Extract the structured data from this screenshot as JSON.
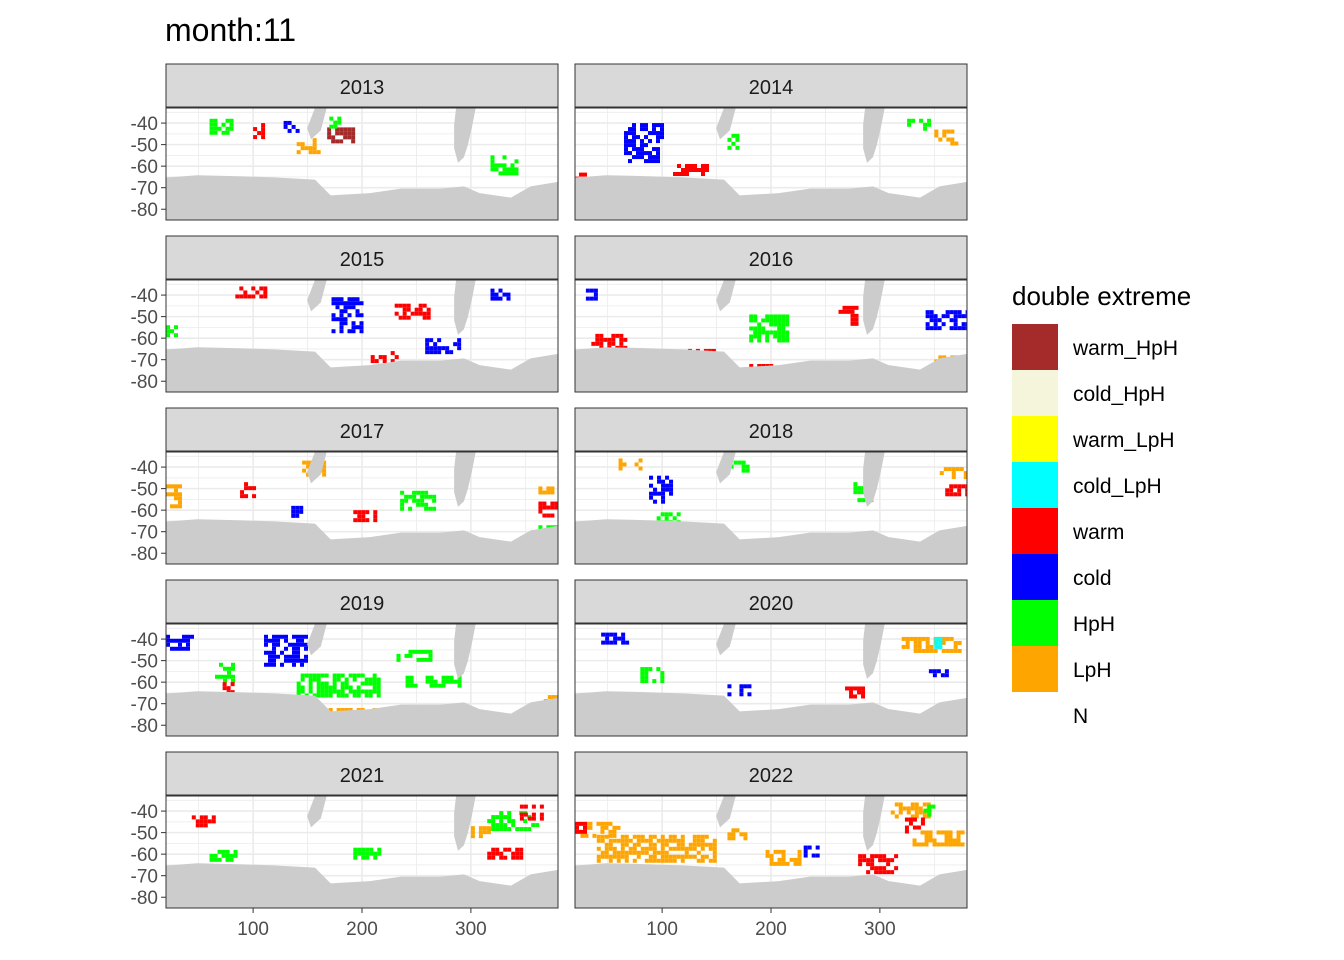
{
  "title": "month:11",
  "x_ticks": [
    "100",
    "200",
    "300"
  ],
  "y_ticks": [
    "-40",
    "-50",
    "-60",
    "-70",
    "-80"
  ],
  "legend": {
    "title": "double extreme",
    "items": [
      {
        "label": "warm_HpH",
        "color": "#a52a2a"
      },
      {
        "label": "cold_HpH",
        "color": "#f5f5dc"
      },
      {
        "label": "warm_LpH",
        "color": "#ffff00"
      },
      {
        "label": "cold_LpH",
        "color": "#00ffff"
      },
      {
        "label": "warm",
        "color": "#ff0000"
      },
      {
        "label": "cold",
        "color": "#0000ff"
      },
      {
        "label": "HpH",
        "color": "#00ff00"
      },
      {
        "label": "LpH",
        "color": "#ffa500"
      },
      {
        "label": "N",
        "color": null
      }
    ]
  },
  "chart_data": {
    "type": "heatmap",
    "facet_by": "year",
    "x_range": [
      20,
      380
    ],
    "y_range": [
      -85,
      -33
    ],
    "x_tick_values": [
      100,
      200,
      300
    ],
    "y_tick_values": [
      -40,
      -50,
      -60,
      -70,
      -80
    ],
    "land_color": "#cccccc",
    "grid": true,
    "legend_position": "right",
    "panels": [
      {
        "year": "2013",
        "regions": [
          {
            "c": "warm_HpH",
            "x": [
              168,
              192
            ],
            "y": [
              -49,
              -42
            ]
          },
          {
            "c": "HpH",
            "x": [
              318,
              342
            ],
            "y": [
              -64,
              -55
            ]
          },
          {
            "c": "HpH",
            "x": [
              60,
              80
            ],
            "y": [
              -44,
              -38
            ]
          },
          {
            "c": "LpH",
            "x": [
              140,
              160
            ],
            "y": [
              -54,
              -47
            ]
          },
          {
            "c": "warm",
            "x": [
              100,
              110
            ],
            "y": [
              -46,
              -40
            ]
          },
          {
            "c": "cold",
            "x": [
              128,
              142
            ],
            "y": [
              -44,
              -39
            ]
          },
          {
            "c": "HpH",
            "x": [
              170,
              180
            ],
            "y": [
              -41,
              -37
            ]
          }
        ]
      },
      {
        "year": "2014",
        "regions": [
          {
            "c": "cold",
            "x": [
              65,
              100
            ],
            "y": [
              -58,
              -40
            ]
          },
          {
            "c": "HpH",
            "x": [
              160,
              170
            ],
            "y": [
              -52,
              -45
            ]
          },
          {
            "c": "LpH",
            "x": [
              350,
              370
            ],
            "y": [
              -49,
              -43
            ]
          },
          {
            "c": "warm",
            "x": [
              110,
              140
            ],
            "y": [
              -64,
              -59
            ]
          },
          {
            "c": "warm",
            "x": [
              20,
              30
            ],
            "y": [
              -67,
              -63
            ]
          },
          {
            "c": "warm",
            "x": [
              218,
              238
            ],
            "y": [
              -75,
              -72
            ]
          },
          {
            "c": "HpH",
            "x": [
              325,
              345
            ],
            "y": [
              -42,
              -38
            ]
          }
        ]
      },
      {
        "year": "2015",
        "regions": [
          {
            "c": "warm",
            "x": [
              80,
              110
            ],
            "y": [
              -41,
              -36
            ]
          },
          {
            "c": "cold",
            "x": [
              172,
              200
            ],
            "y": [
              -56,
              -41
            ]
          },
          {
            "c": "warm",
            "x": [
              230,
              260
            ],
            "y": [
              -50,
              -44
            ]
          },
          {
            "c": "cold",
            "x": [
              258,
              290
            ],
            "y": [
              -67,
              -60
            ]
          },
          {
            "c": "warm",
            "x": [
              30,
              55
            ],
            "y": [
              -70,
              -66
            ]
          },
          {
            "c": "HpH",
            "x": [
              20,
              28
            ],
            "y": [
              -61,
              -54
            ]
          },
          {
            "c": "warm",
            "x": [
              208,
              232
            ],
            "y": [
              -70,
              -66
            ]
          },
          {
            "c": "cold",
            "x": [
              318,
              335
            ],
            "y": [
              -42,
              -37
            ]
          }
        ]
      },
      {
        "year": "2016",
        "regions": [
          {
            "c": "warm",
            "x": [
              35,
              65
            ],
            "y": [
              -66,
              -58
            ]
          },
          {
            "c": "warm",
            "x": [
              120,
              150
            ],
            "y": [
              -71,
              -65
            ]
          },
          {
            "c": "HpH",
            "x": [
              180,
              215
            ],
            "y": [
              -61,
              -49
            ]
          },
          {
            "c": "warm",
            "x": [
              262,
              278
            ],
            "y": [
              -53,
              -45
            ]
          },
          {
            "c": "cold",
            "x": [
              342,
              380
            ],
            "y": [
              -55,
              -47
            ]
          },
          {
            "c": "cold",
            "x": [
              30,
              45
            ],
            "y": [
              -41,
              -37
            ]
          },
          {
            "c": "LpH",
            "x": [
              350,
              370
            ],
            "y": [
              -72,
              -68
            ]
          },
          {
            "c": "warm",
            "x": [
              180,
              200
            ],
            "y": [
              -75,
              -72
            ]
          }
        ]
      },
      {
        "year": "2017",
        "regions": [
          {
            "c": "LpH",
            "x": [
              20,
              33
            ],
            "y": [
              -58,
              -48
            ]
          },
          {
            "c": "HpH",
            "x": [
              235,
              265
            ],
            "y": [
              -60,
              -51
            ]
          },
          {
            "c": "warm",
            "x": [
              362,
              380
            ],
            "y": [
              -62,
              -56
            ]
          },
          {
            "c": "LpH",
            "x": [
              145,
              165
            ],
            "y": [
              -44,
              -37
            ]
          },
          {
            "c": "cold",
            "x": [
              135,
              145
            ],
            "y": [
              -63,
              -58
            ]
          },
          {
            "c": "warm",
            "x": [
              192,
              212
            ],
            "y": [
              -64,
              -60
            ]
          },
          {
            "c": "warm",
            "x": [
              88,
              102
            ],
            "y": [
              -53,
              -47
            ]
          },
          {
            "c": "LpH",
            "x": [
              362,
              380
            ],
            "y": [
              -53,
              -49
            ]
          },
          {
            "c": "HpH",
            "x": [
              362,
              380
            ],
            "y": [
              -71,
              -67
            ]
          }
        ]
      },
      {
        "year": "2018",
        "regions": [
          {
            "c": "cold",
            "x": [
              88,
              108
            ],
            "y": [
              -56,
              -44
            ]
          },
          {
            "c": "LpH",
            "x": [
              60,
              80
            ],
            "y": [
              -40,
              -36
            ]
          },
          {
            "c": "HpH",
            "x": [
              162,
              178
            ],
            "y": [
              -42,
              -37
            ]
          },
          {
            "c": "HpH",
            "x": [
              272,
              292
            ],
            "y": [
              -55,
              -47
            ]
          },
          {
            "c": "LpH",
            "x": [
              355,
              380
            ],
            "y": [
              -44,
              -40
            ]
          },
          {
            "c": "warm",
            "x": [
              360,
              380
            ],
            "y": [
              -52,
              -48
            ]
          },
          {
            "c": "HpH",
            "x": [
              95,
              115
            ],
            "y": [
              -65,
              -61
            ]
          }
        ]
      },
      {
        "year": "2019",
        "regions": [
          {
            "c": "cold",
            "x": [
              110,
              150
            ],
            "y": [
              -52,
              -38
            ]
          },
          {
            "c": "HpH",
            "x": [
              140,
              215
            ],
            "y": [
              -66,
              -56
            ]
          },
          {
            "c": "LpH",
            "x": [
              20,
              55
            ],
            "y": [
              -73,
              -67
            ]
          },
          {
            "c": "LpH",
            "x": [
              140,
              220
            ],
            "y": [
              -78,
              -72
            ]
          },
          {
            "c": "HpH",
            "x": [
              65,
              80
            ],
            "y": [
              -59,
              -51
            ]
          },
          {
            "c": "HpH",
            "x": [
              240,
              290
            ],
            "y": [
              -61,
              -57
            ]
          },
          {
            "c": "HpH",
            "x": [
              228,
              262
            ],
            "y": [
              -49,
              -45
            ]
          },
          {
            "c": "LpH",
            "x": [
              367,
              380
            ],
            "y": [
              -73,
              -66
            ]
          },
          {
            "c": "cold",
            "x": [
              20,
              45
            ],
            "y": [
              -44,
              -38
            ]
          },
          {
            "c": "warm",
            "x": [
              72,
              82
            ],
            "y": [
              -67,
              -60
            ]
          }
        ]
      },
      {
        "year": "2020",
        "regions": [
          {
            "c": "LpH",
            "x": [
              320,
              375
            ],
            "y": [
              -45,
              -39
            ]
          },
          {
            "c": "cold",
            "x": [
              345,
              365
            ],
            "y": [
              -57,
              -54
            ]
          },
          {
            "c": "warm",
            "x": [
              268,
              283
            ],
            "y": [
              -66,
              -62
            ]
          },
          {
            "c": "HpH",
            "x": [
              80,
              100
            ],
            "y": [
              -59,
              -53
            ]
          },
          {
            "c": "cold",
            "x": [
              160,
              182
            ],
            "y": [
              -65,
              -61
            ]
          },
          {
            "c": "cold",
            "x": [
              44,
              68
            ],
            "y": [
              -41,
              -37
            ]
          },
          {
            "c": "cold_LpH",
            "x": [
              350,
              356
            ],
            "y": [
              -43,
              -39
            ]
          }
        ]
      },
      {
        "year": "2021",
        "regions": [
          {
            "c": "HpH",
            "x": [
              315,
              360
            ],
            "y": [
              -48,
              -40
            ]
          },
          {
            "c": "warm",
            "x": [
              315,
              345
            ],
            "y": [
              -61,
              -57
            ]
          },
          {
            "c": "HpH",
            "x": [
              192,
              215
            ],
            "y": [
              -62,
              -57
            ]
          },
          {
            "c": "LpH",
            "x": [
              300,
              318
            ],
            "y": [
              -52,
              -47
            ]
          },
          {
            "c": "warm",
            "x": [
              345,
              365
            ],
            "y": [
              -43,
              -37
            ]
          },
          {
            "c": "HpH",
            "x": [
              60,
              85
            ],
            "y": [
              -62,
              -58
            ]
          },
          {
            "c": "warm",
            "x": [
              40,
              65
            ],
            "y": [
              -46,
              -42
            ]
          }
        ]
      },
      {
        "year": "2022",
        "regions": [
          {
            "c": "LpH",
            "x": [
              40,
              150
            ],
            "y": [
              -63,
              -51
            ]
          },
          {
            "c": "LpH",
            "x": [
              25,
              60
            ],
            "y": [
              -52,
              -45
            ]
          },
          {
            "c": "LpH",
            "x": [
              195,
              225
            ],
            "y": [
              -64,
              -58
            ]
          },
          {
            "c": "LpH",
            "x": [
              310,
              345
            ],
            "y": [
              -42,
              -36
            ]
          },
          {
            "c": "LpH",
            "x": [
              330,
              375
            ],
            "y": [
              -56,
              -49
            ]
          },
          {
            "c": "warm",
            "x": [
              323,
              343
            ],
            "y": [
              -50,
              -43
            ]
          },
          {
            "c": "warm",
            "x": [
              280,
              315
            ],
            "y": [
              -68,
              -60
            ]
          },
          {
            "c": "warm",
            "x": [
              20,
              30
            ],
            "y": [
              -50,
              -45
            ]
          },
          {
            "c": "cold",
            "x": [
              230,
              242
            ],
            "y": [
              -60,
              -56
            ]
          },
          {
            "c": "HpH",
            "x": [
              340,
              348
            ],
            "y": [
              -42,
              -37
            ]
          },
          {
            "c": "LpH",
            "x": [
              160,
              175
            ],
            "y": [
              -52,
              -48
            ]
          }
        ]
      }
    ]
  }
}
